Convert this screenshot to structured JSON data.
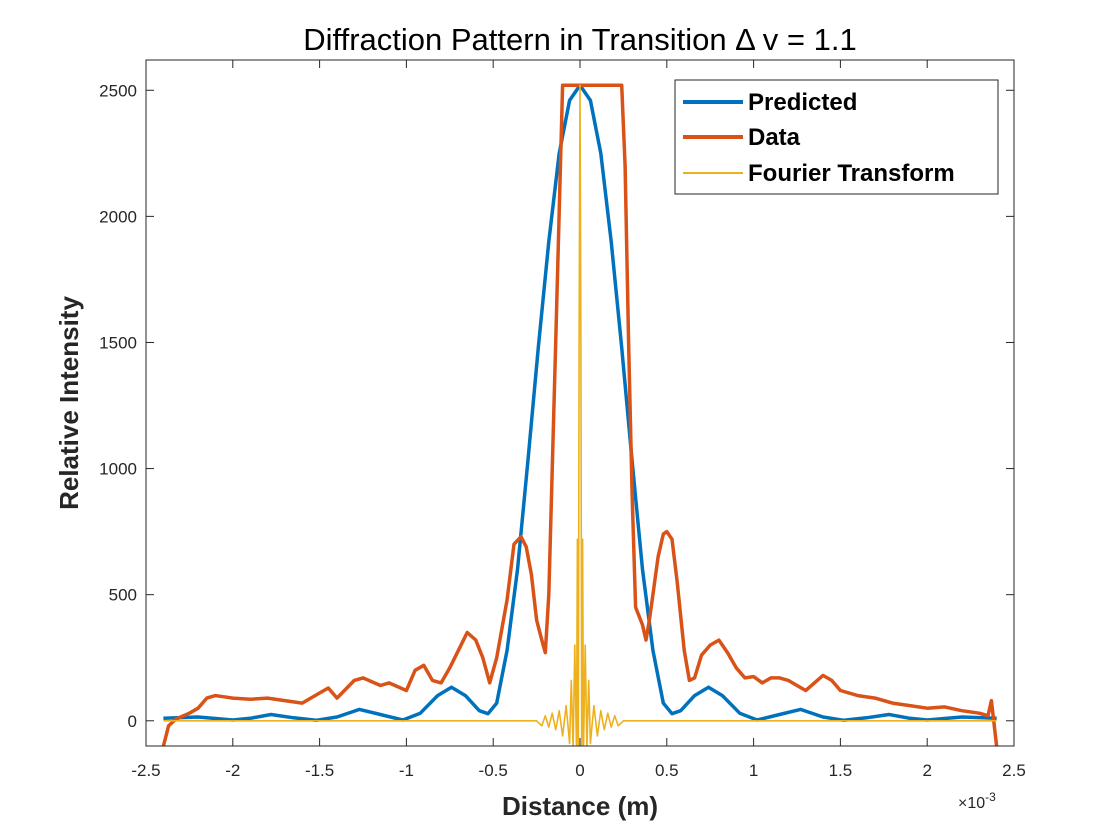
{
  "chart_data": {
    "type": "line",
    "title": "Diffraction Pattern in Transition Δ v = 1.1",
    "xlabel": "Distance (m)",
    "ylabel": "Relative Intensity",
    "x_multiplier_label": "×10",
    "x_multiplier_exponent": "-3",
    "xlim": [
      -2.5,
      2.5
    ],
    "ylim": [
      -100,
      2620
    ],
    "xticks": [
      -2.5,
      -2,
      -1.5,
      -1,
      -0.5,
      0,
      0.5,
      1,
      1.5,
      2,
      2.5
    ],
    "xtick_labels": [
      "-2.5",
      "-2",
      "-1.5",
      "-1",
      "-0.5",
      "0",
      "0.5",
      "1",
      "1.5",
      "2",
      "2.5"
    ],
    "yticks": [
      0,
      500,
      1000,
      1500,
      2000,
      2500
    ],
    "ytick_labels": [
      "0",
      "500",
      "1000",
      "1500",
      "2000",
      "2500"
    ],
    "grid": false,
    "legend_position": "top-right",
    "series": [
      {
        "name": "Predicted",
        "color": "#0072BD",
        "x": [
          -2.4,
          -2.2,
          -2.0,
          -1.9,
          -1.78,
          -1.65,
          -1.52,
          -1.4,
          -1.27,
          -1.15,
          -1.02,
          -0.92,
          -0.82,
          -0.74,
          -0.66,
          -0.58,
          -0.53,
          -0.48,
          -0.42,
          -0.36,
          -0.3,
          -0.24,
          -0.18,
          -0.12,
          -0.06,
          0,
          0.06,
          0.12,
          0.18,
          0.24,
          0.3,
          0.36,
          0.42,
          0.48,
          0.53,
          0.58,
          0.66,
          0.74,
          0.82,
          0.92,
          1.02,
          1.15,
          1.27,
          1.4,
          1.52,
          1.65,
          1.78,
          1.9,
          2.0,
          2.2,
          2.4
        ],
        "y": [
          10,
          15,
          3,
          10,
          25,
          12,
          2,
          15,
          45,
          25,
          3,
          30,
          100,
          133,
          100,
          40,
          28,
          70,
          280,
          600,
          1030,
          1480,
          1900,
          2250,
          2460,
          2520,
          2460,
          2250,
          1900,
          1480,
          1030,
          600,
          280,
          70,
          28,
          40,
          100,
          133,
          100,
          30,
          3,
          25,
          45,
          15,
          2,
          12,
          25,
          10,
          3,
          15,
          10
        ]
      },
      {
        "name": "Data",
        "color": "#D95319",
        "x": [
          -2.4,
          -2.37,
          -2.33,
          -2.3,
          -2.25,
          -2.2,
          -2.15,
          -2.1,
          -2.05,
          -2.0,
          -1.9,
          -1.8,
          -1.7,
          -1.6,
          -1.5,
          -1.45,
          -1.4,
          -1.3,
          -1.25,
          -1.15,
          -1.1,
          -1.0,
          -0.95,
          -0.9,
          -0.85,
          -0.8,
          -0.75,
          -0.7,
          -0.65,
          -0.6,
          -0.56,
          -0.52,
          -0.48,
          -0.42,
          -0.38,
          -0.34,
          -0.31,
          -0.28,
          -0.25,
          -0.22,
          -0.2,
          -0.18,
          -0.14,
          -0.1,
          -0.06,
          -0.04,
          0.0,
          0.1,
          0.2,
          0.24,
          0.26,
          0.28,
          0.3,
          0.32,
          0.36,
          0.38,
          0.4,
          0.42,
          0.45,
          0.48,
          0.5,
          0.53,
          0.56,
          0.6,
          0.63,
          0.66,
          0.7,
          0.75,
          0.8,
          0.85,
          0.9,
          0.95,
          1.0,
          1.05,
          1.1,
          1.15,
          1.2,
          1.25,
          1.3,
          1.35,
          1.4,
          1.45,
          1.5,
          1.6,
          1.7,
          1.8,
          1.9,
          2.0,
          2.1,
          2.2,
          2.3,
          2.35,
          2.37,
          2.4
        ],
        "y": [
          -100,
          -20,
          5,
          15,
          30,
          50,
          90,
          100,
          95,
          90,
          85,
          90,
          80,
          70,
          110,
          130,
          90,
          160,
          170,
          140,
          150,
          120,
          200,
          220,
          160,
          150,
          210,
          280,
          350,
          320,
          250,
          150,
          250,
          480,
          700,
          730,
          690,
          580,
          400,
          320,
          270,
          500,
          1500,
          2520,
          2520,
          2520,
          2520,
          2520,
          2520,
          2520,
          2200,
          1500,
          900,
          450,
          380,
          320,
          400,
          500,
          650,
          740,
          750,
          720,
          550,
          280,
          160,
          170,
          260,
          300,
          320,
          270,
          210,
          170,
          175,
          150,
          170,
          170,
          160,
          140,
          120,
          150,
          180,
          160,
          120,
          100,
          90,
          70,
          60,
          50,
          55,
          40,
          30,
          20,
          80,
          -100
        ]
      },
      {
        "name": "Fourier Transform",
        "color": "#EDB120",
        "x": [
          -2.4,
          -2.0,
          -1.5,
          -1.0,
          -0.5,
          -0.25,
          -0.22,
          -0.2,
          -0.18,
          -0.16,
          -0.14,
          -0.12,
          -0.1,
          -0.08,
          -0.06,
          -0.05,
          -0.04,
          -0.03,
          -0.02,
          -0.015,
          -0.01,
          -0.005,
          0,
          0.005,
          0.01,
          0.015,
          0.02,
          0.03,
          0.04,
          0.05,
          0.06,
          0.08,
          0.1,
          0.12,
          0.14,
          0.16,
          0.18,
          0.2,
          0.22,
          0.25,
          0.5,
          1.0,
          1.5,
          2.0,
          2.4
        ],
        "y": [
          0,
          0,
          0,
          0,
          0,
          0,
          -20,
          20,
          -25,
          30,
          -35,
          40,
          -60,
          60,
          -90,
          160,
          -110,
          300,
          -120,
          720,
          -130,
          1500,
          2520,
          1500,
          -130,
          720,
          -120,
          300,
          -110,
          160,
          -90,
          60,
          -60,
          40,
          -35,
          30,
          -25,
          20,
          -20,
          0,
          0,
          0,
          0,
          0,
          0
        ]
      }
    ]
  }
}
